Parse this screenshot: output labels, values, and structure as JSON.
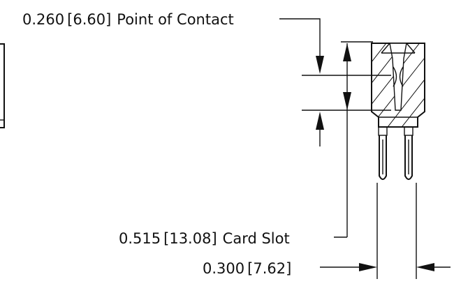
{
  "callouts": {
    "contact": {
      "value_in": "0.260",
      "value_mm": "6.60",
      "label": "Point of Contact"
    },
    "card_slot": {
      "value_in": "0.515",
      "value_mm": "13.08",
      "label": "Card Slot"
    },
    "pitch": {
      "value_in": "0.300",
      "value_mm": "7.62"
    }
  },
  "colors": {
    "line": "#111111",
    "background": "#ffffff"
  }
}
